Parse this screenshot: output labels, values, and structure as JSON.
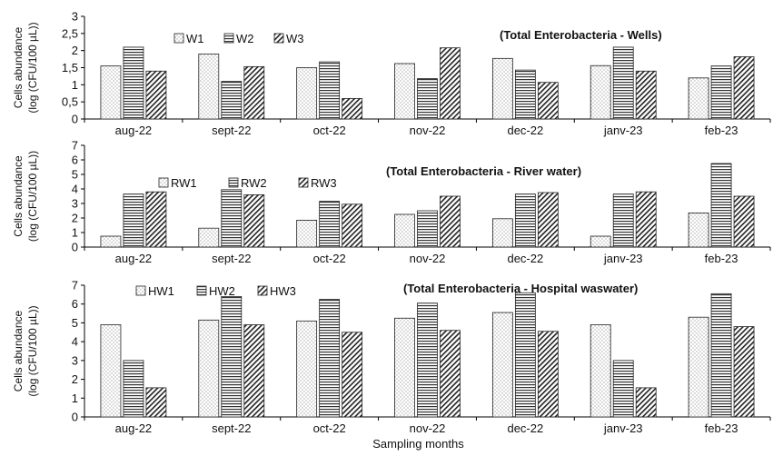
{
  "chart_data": [
    {
      "type": "bar",
      "title": "(Total Enterobacteria - Wells)",
      "ylabel_line1": "Cells abundance",
      "ylabel_line2": "(log (CFU/100 µL))",
      "ylim": [
        0,
        3
      ],
      "yticks": [
        "0",
        "0,5",
        "1",
        "1,5",
        "2",
        "2,5",
        "3"
      ],
      "categories": [
        "aug-22",
        "sept-22",
        "oct-22",
        "nov-22",
        "dec-22",
        "janv-23",
        "feb-23"
      ],
      "legend_placement": "top-left",
      "series": [
        {
          "name": "W1",
          "pattern": "dots",
          "values": [
            1.55,
            1.9,
            1.5,
            1.62,
            1.77,
            1.56,
            1.2
          ]
        },
        {
          "name": "W2",
          "pattern": "hlines",
          "values": [
            2.1,
            1.1,
            1.67,
            1.18,
            1.43,
            2.1,
            1.55
          ]
        },
        {
          "name": "W3",
          "pattern": "diag",
          "values": [
            1.4,
            1.53,
            0.6,
            2.08,
            1.07,
            1.4,
            1.82
          ]
        }
      ]
    },
    {
      "type": "bar",
      "title": "(Total Enterobacteria - River water)",
      "ylabel_line1": "Cells abundance",
      "ylabel_line2": "(log (CFU/100 µL))",
      "ylim": [
        0,
        7
      ],
      "yticks": [
        "0",
        "1",
        "2",
        "3",
        "4",
        "5",
        "6",
        "7"
      ],
      "categories": [
        "aug-22",
        "sept-22",
        "oct-22",
        "nov-22",
        "dec-22",
        "janv-23",
        "feb-23"
      ],
      "legend_placement": "top-left",
      "series": [
        {
          "name": "RW1",
          "pattern": "dots",
          "values": [
            0.75,
            1.3,
            1.85,
            2.25,
            1.95,
            0.75,
            2.35
          ]
        },
        {
          "name": "RW2",
          "pattern": "hlines",
          "values": [
            3.65,
            3.95,
            3.15,
            2.5,
            3.65,
            3.65,
            5.75
          ]
        },
        {
          "name": "RW3",
          "pattern": "diag",
          "values": [
            3.8,
            3.6,
            2.95,
            3.5,
            3.75,
            3.8,
            3.5
          ]
        }
      ]
    },
    {
      "type": "bar",
      "title": "(Total Enterobacteria - Hospital waswater)",
      "ylabel_line1": "Cells abundance",
      "ylabel_line2": "(log (CFU/100 µL))",
      "xlabel": "Sampling months",
      "ylim": [
        0,
        7
      ],
      "yticks": [
        "0",
        "1",
        "2",
        "3",
        "4",
        "5",
        "6",
        "7"
      ],
      "categories": [
        "aug-22",
        "sept-22",
        "oct-22",
        "nov-22",
        "dec-22",
        "janv-23",
        "feb-23"
      ],
      "legend_placement": "top-left",
      "series": [
        {
          "name": "HW1",
          "pattern": "dots",
          "values": [
            4.9,
            5.15,
            5.1,
            5.25,
            5.55,
            4.9,
            5.3
          ]
        },
        {
          "name": "HW2",
          "pattern": "hlines",
          "values": [
            3.0,
            6.4,
            6.25,
            6.05,
            6.6,
            3.0,
            6.55
          ]
        },
        {
          "name": "HW3",
          "pattern": "diag",
          "values": [
            1.55,
            4.9,
            4.5,
            4.6,
            4.55,
            1.55,
            4.8
          ]
        }
      ]
    }
  ]
}
